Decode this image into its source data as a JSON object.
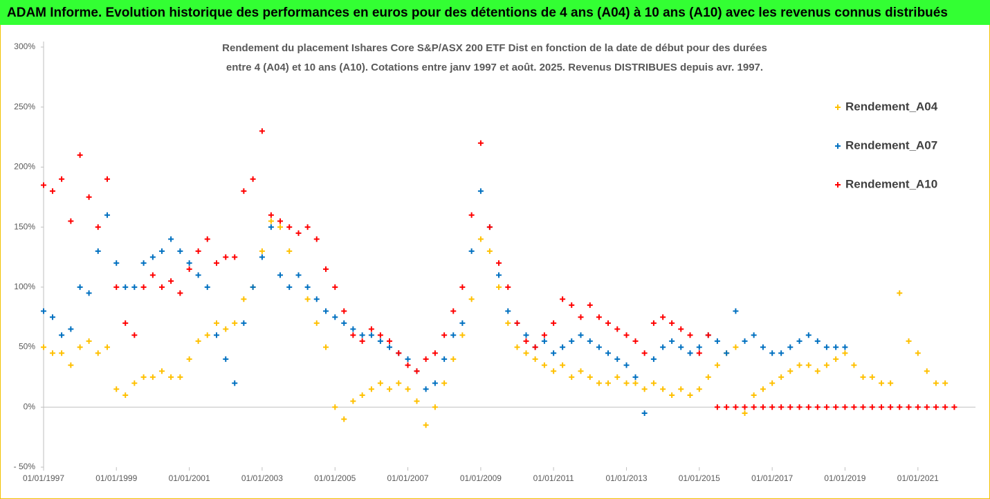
{
  "chart_data": {
    "type": "scatter",
    "title": "ADAM Informe. Evolution historique des performances en euros pour des détentions de 4 ans (A04) à 10 ans (A10) avec les revenus connus distribués",
    "subtitle": [
      "Rendement du placement Ishares Core S&P/ASX 200 ETF Dist en fonction de la date de début pour des durées",
      "entre 4 (A04) et 10 ans (A10). Cotations entre janv 1997 et août. 2025. Revenus DISTRIBUES depuis avr. 1997."
    ],
    "x": [
      "1997-01-01",
      "1997-04-01",
      "1997-07-01",
      "1997-10-01",
      "1998-01-01",
      "1998-04-01",
      "1998-07-01",
      "1998-10-01",
      "1999-01-01",
      "1999-04-01",
      "1999-07-01",
      "1999-10-01",
      "2000-01-01",
      "2000-04-01",
      "2000-07-01",
      "2000-10-01",
      "2001-01-01",
      "2001-04-01",
      "2001-07-01",
      "2001-10-01",
      "2002-01-01",
      "2002-04-01",
      "2002-07-01",
      "2002-10-01",
      "2003-01-01",
      "2003-04-01",
      "2003-07-01",
      "2003-10-01",
      "2004-01-01",
      "2004-04-01",
      "2004-07-01",
      "2004-10-01",
      "2005-01-01",
      "2005-04-01",
      "2005-07-01",
      "2005-10-01",
      "2006-01-01",
      "2006-04-01",
      "2006-07-01",
      "2006-10-01",
      "2007-01-01",
      "2007-04-01",
      "2007-07-01",
      "2007-10-01",
      "2008-01-01",
      "2008-04-01",
      "2008-07-01",
      "2008-10-01",
      "2009-01-01",
      "2009-04-01",
      "2009-07-01",
      "2009-10-01",
      "2010-01-01",
      "2010-04-01",
      "2010-07-01",
      "2010-10-01",
      "2011-01-01",
      "2011-04-01",
      "2011-07-01",
      "2011-10-01",
      "2012-01-01",
      "2012-04-01",
      "2012-07-01",
      "2012-10-01",
      "2013-01-01",
      "2013-04-01",
      "2013-07-01",
      "2013-10-01",
      "2014-01-01",
      "2014-04-01",
      "2014-07-01",
      "2014-10-01",
      "2015-01-01",
      "2015-04-01",
      "2015-07-01",
      "2015-10-01",
      "2016-01-01",
      "2016-04-01",
      "2016-07-01",
      "2016-10-01",
      "2017-01-01",
      "2017-04-01",
      "2017-07-01",
      "2017-10-01",
      "2018-01-01",
      "2018-04-01",
      "2018-07-01",
      "2018-10-01",
      "2019-01-01",
      "2019-04-01",
      "2019-07-01",
      "2019-10-01",
      "2020-01-01",
      "2020-04-01",
      "2020-07-01",
      "2020-10-01",
      "2021-01-01",
      "2021-04-01",
      "2021-07-01",
      "2021-10-01",
      "2022-01-01"
    ],
    "series": [
      {
        "name": "Rendement_A04",
        "color": "#FFC000",
        "values": [
          50,
          45,
          45,
          35,
          50,
          55,
          45,
          50,
          15,
          10,
          20,
          25,
          25,
          30,
          25,
          25,
          40,
          55,
          60,
          70,
          65,
          70,
          90,
          100,
          130,
          155,
          150,
          130,
          110,
          90,
          70,
          50,
          0,
          -10,
          5,
          10,
          15,
          20,
          15,
          20,
          15,
          5,
          -15,
          0,
          20,
          40,
          60,
          90,
          140,
          130,
          100,
          70,
          50,
          45,
          40,
          35,
          30,
          35,
          25,
          30,
          25,
          20,
          20,
          25,
          20,
          20,
          15,
          20,
          15,
          10,
          15,
          10,
          15,
          25,
          35,
          45,
          50,
          -5,
          10,
          15,
          20,
          25,
          30,
          35,
          35,
          30,
          35,
          40,
          45,
          35,
          25,
          25,
          20,
          20,
          95,
          55,
          45,
          30,
          20,
          20,
          null
        ]
      },
      {
        "name": "Rendement_A07",
        "color": "#0070C0",
        "values": [
          80,
          75,
          60,
          65,
          100,
          95,
          130,
          160,
          120,
          100,
          100,
          120,
          125,
          130,
          140,
          130,
          120,
          110,
          100,
          60,
          40,
          20,
          70,
          100,
          125,
          150,
          110,
          100,
          110,
          100,
          90,
          80,
          75,
          70,
          65,
          60,
          60,
          55,
          50,
          45,
          40,
          30,
          15,
          20,
          40,
          60,
          70,
          130,
          180,
          150,
          110,
          80,
          70,
          60,
          50,
          55,
          45,
          50,
          55,
          60,
          55,
          50,
          45,
          40,
          35,
          25,
          -5,
          40,
          50,
          55,
          50,
          45,
          50,
          60,
          55,
          45,
          80,
          55,
          60,
          50,
          45,
          45,
          50,
          55,
          60,
          55,
          50,
          50,
          50,
          null,
          null,
          null,
          null,
          null,
          null,
          null,
          null,
          null,
          null,
          null,
          null
        ]
      },
      {
        "name": "Rendement_A10",
        "color": "#FF0000",
        "values": [
          185,
          180,
          190,
          155,
          210,
          175,
          150,
          190,
          100,
          70,
          60,
          100,
          110,
          100,
          105,
          95,
          115,
          130,
          140,
          120,
          125,
          125,
          180,
          190,
          230,
          160,
          155,
          150,
          145,
          150,
          140,
          115,
          100,
          80,
          60,
          55,
          65,
          60,
          55,
          45,
          35,
          30,
          40,
          45,
          60,
          80,
          100,
          160,
          220,
          150,
          120,
          100,
          70,
          55,
          50,
          60,
          70,
          90,
          85,
          75,
          85,
          75,
          70,
          65,
          60,
          55,
          45,
          70,
          75,
          70,
          65,
          60,
          45,
          60,
          0,
          0,
          0,
          0,
          0,
          0,
          0,
          0,
          0,
          0,
          0,
          0,
          0,
          0,
          0,
          0,
          0,
          0,
          0,
          0,
          0,
          0,
          0,
          0,
          0,
          0,
          0
        ]
      }
    ],
    "xlim": [
      "1997-01-01",
      "2022-08-01"
    ],
    "xticks": [
      {
        "value": "1997-01-01",
        "label": "01/01/1997"
      },
      {
        "value": "1999-01-01",
        "label": "01/01/1999"
      },
      {
        "value": "2001-01-01",
        "label": "01/01/2001"
      },
      {
        "value": "2003-01-01",
        "label": "01/01/2003"
      },
      {
        "value": "2005-01-01",
        "label": "01/01/2005"
      },
      {
        "value": "2007-01-01",
        "label": "01/01/2007"
      },
      {
        "value": "2009-01-01",
        "label": "01/01/2009"
      },
      {
        "value": "2011-01-01",
        "label": "01/01/2011"
      },
      {
        "value": "2013-01-01",
        "label": "01/01/2013"
      },
      {
        "value": "2015-01-01",
        "label": "01/01/2015"
      },
      {
        "value": "2017-01-01",
        "label": "01/01/2017"
      },
      {
        "value": "2019-01-01",
        "label": "01/01/2019"
      },
      {
        "value": "2021-01-01",
        "label": "01/01/2021"
      }
    ],
    "ylim": [
      -50,
      300
    ],
    "yticks": [
      {
        "value": -50,
        "label": "- 50%"
      },
      {
        "value": 0,
        "label": "0%"
      },
      {
        "value": 50,
        "label": "50%"
      },
      {
        "value": 100,
        "label": "100%"
      },
      {
        "value": 150,
        "label": "150%"
      },
      {
        "value": 200,
        "label": "200%"
      },
      {
        "value": 250,
        "label": "250%"
      },
      {
        "value": 300,
        "label": "300%"
      }
    ],
    "grid": false,
    "legend": "right"
  }
}
